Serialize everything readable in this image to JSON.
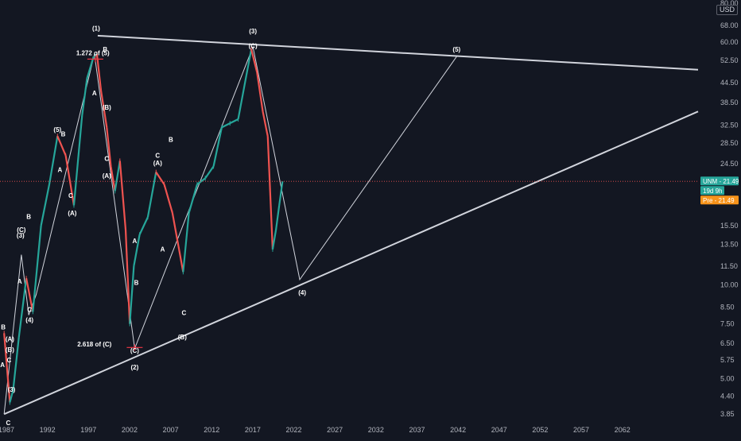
{
  "chart_data": {
    "type": "line",
    "title": "",
    "currency": "USD",
    "scale": "log",
    "ylim": [
      3.7,
      82
    ],
    "xlim": [
      1987,
      2072
    ],
    "grid": false,
    "x_ticks": [
      "1987",
      "1992",
      "1997",
      "2002",
      "2007",
      "2012",
      "2017",
      "2022",
      "2027",
      "2032",
      "2037",
      "2042",
      "2047",
      "2052",
      "2057",
      "2062"
    ],
    "y_ticks": [
      "80.00",
      "68.00",
      "60.00",
      "52.50",
      "44.50",
      "38.50",
      "32.50",
      "28.50",
      "24.50",
      "21.49",
      "18.50",
      "15.50",
      "13.50",
      "11.50",
      "10.00",
      "8.50",
      "7.50",
      "6.50",
      "5.75",
      "5.00",
      "4.40",
      "3.85"
    ],
    "price_tags": [
      {
        "text": "UNM",
        "value": "21.49",
        "color": "#26a69a"
      },
      {
        "text": "19d 9h",
        "color": "#26a69a"
      },
      {
        "text": "Pre",
        "value": "21.49",
        "color": "#f7931a"
      }
    ],
    "last_price": 21.49,
    "series": [
      {
        "color": "#d1d4dc",
        "x": [
          1987.5,
          1988.2,
          1988.6,
          1989.3,
          1990.2,
          1991.0,
          1992.0,
          1993.0,
          1994.0,
          1995.0,
          1996.0,
          1997.0,
          1997.6,
          1998.3,
          1998.8,
          1999.3,
          2000.0,
          2000.5,
          2001.0,
          2001.6,
          2002.3,
          2002.8,
          2003.3,
          2004.0,
          2005.0,
          2006.0,
          2007.0,
          2008.0,
          2008.8,
          2009.3,
          2010.0,
          2011.0,
          2012.0,
          2013.0,
          2014.0,
          2015.0,
          2016.0,
          2017.0,
          2017.6,
          2018.3,
          2019.0,
          2019.6,
          2020.2,
          2020.6,
          2021.0,
          2021.4
        ],
        "y": [
          7.0,
          4.2,
          4.6,
          6.8,
          10.5,
          8.2,
          15.5,
          21.0,
          30.0,
          26.0,
          18.0,
          35.0,
          46.0,
          53.0,
          55.0,
          42.0,
          32.0,
          24.0,
          20.0,
          25.0,
          15.0,
          7.5,
          11.5,
          14.5,
          16.5,
          23.0,
          21.0,
          17.0,
          13.0,
          11.0,
          17.0,
          21.0,
          22.0,
          24.0,
          32.0,
          33.0,
          34.0,
          47.0,
          57.0,
          48.0,
          36.0,
          30.0,
          13.0,
          15.0,
          18.0,
          21.49
        ]
      }
    ],
    "trendlines": [
      {
        "color": "#d1d4dc",
        "x": [
          1987.5,
          2072
        ],
        "y": [
          3.85,
          36.0
        ]
      },
      {
        "color": "#d1d4dc",
        "x": [
          1998.9,
          2072
        ],
        "y": [
          63.0,
          49.0
        ]
      }
    ],
    "wave_paths": [
      {
        "color": "#d1d4dc",
        "x": [
          1987.5,
          1989.6,
          1990.5,
          1991.4,
          1998.5,
          2003.4,
          2017.8,
          2023.5,
          2042.6
        ],
        "y": [
          3.85,
          12.5,
          8.0,
          9.3,
          55.0,
          6.25,
          58.0,
          10.4,
          54.0
        ]
      }
    ],
    "annotations": [
      {
        "text": "(1)",
        "x": 1998.7,
        "y": 65.5
      },
      {
        "text": "1.272 of (5)",
        "x": 1998.3,
        "y": 54.5
      },
      {
        "text": "B",
        "x": 1999.8,
        "y": 56.0
      },
      {
        "text": "A",
        "x": 1998.5,
        "y": 40.5
      },
      {
        "text": "(B)",
        "x": 2000.0,
        "y": 36.5
      },
      {
        "text": "C",
        "x": 2000.0,
        "y": 25.0
      },
      {
        "text": "(A)",
        "x": 2000.0,
        "y": 22.0
      },
      {
        "text": "(5)",
        "x": 1994.0,
        "y": 31.0
      },
      {
        "text": "B",
        "x": 1994.7,
        "y": 30.0
      },
      {
        "text": "A",
        "x": 1994.3,
        "y": 23.0
      },
      {
        "text": "C",
        "x": 1995.6,
        "y": 19.0
      },
      {
        "text": "(A)",
        "x": 1995.8,
        "y": 16.7
      },
      {
        "text": "B",
        "x": 1990.5,
        "y": 16.3
      },
      {
        "text": "(C)",
        "x": 1989.6,
        "y": 14.8
      },
      {
        "text": "(3)",
        "x": 1989.5,
        "y": 14.2
      },
      {
        "text": "A",
        "x": 1989.4,
        "y": 10.1
      },
      {
        "text": "C",
        "x": 1990.6,
        "y": 8.2
      },
      {
        "text": "(4)",
        "x": 1990.6,
        "y": 7.6
      },
      {
        "text": "B",
        "x": 1987.4,
        "y": 7.2
      },
      {
        "text": "(A)",
        "x": 1988.2,
        "y": 6.6
      },
      {
        "text": "(B)",
        "x": 1988.2,
        "y": 6.1
      },
      {
        "text": "A",
        "x": 1987.3,
        "y": 5.45
      },
      {
        "text": "C",
        "x": 1988.1,
        "y": 5.65
      },
      {
        "text": "(3)",
        "x": 1988.4,
        "y": 4.55
      },
      {
        "text": "C",
        "x": 1988.0,
        "y": 3.55
      },
      {
        "text": "(2)",
        "x": 2003.4,
        "y": 5.35
      },
      {
        "text": "(C)",
        "x": 2003.4,
        "y": 6.05
      },
      {
        "text": "2.618 of (C)",
        "x": 1998.5,
        "y": 6.35
      },
      {
        "text": "B",
        "x": 2003.6,
        "y": 10.0
      },
      {
        "text": "A",
        "x": 2003.4,
        "y": 13.6
      },
      {
        "text": "A",
        "x": 2006.8,
        "y": 12.8
      },
      {
        "text": "(A)",
        "x": 2006.2,
        "y": 24.2
      },
      {
        "text": "C",
        "x": 2006.2,
        "y": 25.6
      },
      {
        "text": "B",
        "x": 2007.8,
        "y": 28.8
      },
      {
        "text": "C",
        "x": 2009.4,
        "y": 8.0
      },
      {
        "text": "(B)",
        "x": 2009.2,
        "y": 6.7
      },
      {
        "text": "(3)",
        "x": 2017.8,
        "y": 64.0
      },
      {
        "text": "(C)",
        "x": 2017.8,
        "y": 57.5
      },
      {
        "text": "(4)",
        "x": 2023.8,
        "y": 9.3
      },
      {
        "text": "(5)",
        "x": 2042.6,
        "y": 56.0
      }
    ],
    "fib_marks": [
      {
        "x": 1998.6,
        "y": 53.0,
        "color": "#f23645"
      },
      {
        "x": 2003.4,
        "y": 6.3,
        "color": "#f23645"
      }
    ]
  }
}
